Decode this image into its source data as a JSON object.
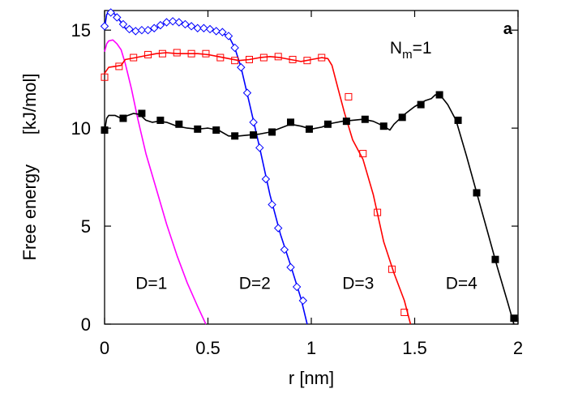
{
  "chart_data": {
    "type": "line",
    "title": "",
    "xlabel": "r [nm]",
    "ylabel": "Free energy      [kJ/mol]",
    "xlim": [
      0,
      2
    ],
    "ylim": [
      0,
      16
    ],
    "xticks": [
      {
        "v": 0,
        "label": "0"
      },
      {
        "v": 0.5,
        "label": "0.5"
      },
      {
        "v": 1,
        "label": "1"
      },
      {
        "v": 1.5,
        "label": "1.5"
      },
      {
        "v": 2,
        "label": "2"
      }
    ],
    "yticks": [
      {
        "v": 0,
        "label": "0"
      },
      {
        "v": 5,
        "label": "5"
      },
      {
        "v": 10,
        "label": "10"
      },
      {
        "v": 15,
        "label": "15"
      }
    ],
    "grid": false,
    "legend": "none",
    "annotations": [
      {
        "text": "a",
        "x": 1.95,
        "y": 14.8,
        "style": "panel"
      },
      {
        "text": "Nₘ=1",
        "x": 1.38,
        "y": 13.8,
        "style": "annot",
        "main": "N",
        "sub": "m",
        "rest": "=1"
      },
      {
        "text": "D=1",
        "x": 0.15,
        "y": 1.8,
        "style": "annot"
      },
      {
        "text": "D=2",
        "x": 0.65,
        "y": 1.8,
        "style": "annot"
      },
      {
        "text": "D=3",
        "x": 1.15,
        "y": 1.8,
        "style": "annot"
      },
      {
        "text": "D=4",
        "x": 1.65,
        "y": 1.8,
        "style": "annot"
      }
    ],
    "series": [
      {
        "color": "#ff00ff",
        "marker": "none",
        "line": [
          [
            0,
            13.9
          ],
          [
            0.01,
            14.3
          ],
          [
            0.02,
            14.45
          ],
          [
            0.04,
            14.5
          ],
          [
            0.06,
            14.3
          ],
          [
            0.08,
            14.0
          ],
          [
            0.1,
            13.3
          ],
          [
            0.13,
            12.0
          ],
          [
            0.16,
            10.5
          ],
          [
            0.2,
            8.7
          ],
          [
            0.25,
            6.9
          ],
          [
            0.3,
            5.1
          ],
          [
            0.35,
            3.5
          ],
          [
            0.4,
            2.1
          ],
          [
            0.45,
            0.9
          ],
          [
            0.49,
            0
          ]
        ],
        "points": []
      },
      {
        "color": "#0000ff",
        "marker": "diamond-open",
        "line": [
          [
            0,
            15.1
          ],
          [
            0.01,
            15.8
          ],
          [
            0.03,
            16.0
          ],
          [
            0.05,
            15.8
          ],
          [
            0.08,
            15.4
          ],
          [
            0.1,
            15.1
          ],
          [
            0.15,
            14.95
          ],
          [
            0.2,
            15.0
          ],
          [
            0.25,
            15.1
          ],
          [
            0.3,
            15.4
          ],
          [
            0.35,
            15.45
          ],
          [
            0.4,
            15.3
          ],
          [
            0.45,
            15.1
          ],
          [
            0.5,
            15.1
          ],
          [
            0.55,
            14.9
          ],
          [
            0.6,
            14.7
          ],
          [
            0.63,
            14.1
          ],
          [
            0.66,
            13.1
          ],
          [
            0.7,
            11.3
          ],
          [
            0.75,
            9.0
          ],
          [
            0.8,
            6.6
          ],
          [
            0.85,
            4.6
          ],
          [
            0.9,
            3.0
          ],
          [
            0.95,
            1.3
          ],
          [
            0.98,
            0
          ]
        ],
        "points": [
          [
            0,
            15.2
          ],
          [
            0.03,
            15.9
          ],
          [
            0.06,
            15.65
          ],
          [
            0.09,
            15.3
          ],
          [
            0.12,
            15.05
          ],
          [
            0.15,
            14.95
          ],
          [
            0.18,
            15.0
          ],
          [
            0.21,
            15.0
          ],
          [
            0.24,
            15.1
          ],
          [
            0.27,
            15.25
          ],
          [
            0.3,
            15.4
          ],
          [
            0.33,
            15.45
          ],
          [
            0.36,
            15.4
          ],
          [
            0.39,
            15.3
          ],
          [
            0.42,
            15.2
          ],
          [
            0.45,
            15.1
          ],
          [
            0.48,
            15.1
          ],
          [
            0.51,
            15.05
          ],
          [
            0.54,
            14.95
          ],
          [
            0.57,
            14.9
          ],
          [
            0.6,
            14.7
          ],
          [
            0.63,
            14.1
          ],
          [
            0.66,
            13.1
          ],
          [
            0.69,
            11.8
          ],
          [
            0.72,
            10.3
          ],
          [
            0.75,
            9.0
          ],
          [
            0.78,
            7.4
          ],
          [
            0.81,
            6.1
          ],
          [
            0.84,
            4.9
          ],
          [
            0.87,
            3.8
          ],
          [
            0.9,
            2.9
          ],
          [
            0.93,
            1.9
          ],
          [
            0.96,
            1.2
          ]
        ]
      },
      {
        "color": "#ff0000",
        "marker": "square-open",
        "line": [
          [
            0,
            12.8
          ],
          [
            0.02,
            13.1
          ],
          [
            0.05,
            13.15
          ],
          [
            0.08,
            13.2
          ],
          [
            0.1,
            13.5
          ],
          [
            0.15,
            13.6
          ],
          [
            0.2,
            13.7
          ],
          [
            0.25,
            13.8
          ],
          [
            0.3,
            13.85
          ],
          [
            0.35,
            13.8
          ],
          [
            0.4,
            13.8
          ],
          [
            0.45,
            13.8
          ],
          [
            0.5,
            13.75
          ],
          [
            0.55,
            13.65
          ],
          [
            0.6,
            13.55
          ],
          [
            0.65,
            13.45
          ],
          [
            0.7,
            13.5
          ],
          [
            0.75,
            13.6
          ],
          [
            0.8,
            13.65
          ],
          [
            0.85,
            13.6
          ],
          [
            0.9,
            13.5
          ],
          [
            0.95,
            13.4
          ],
          [
            1.0,
            13.5
          ],
          [
            1.05,
            13.6
          ],
          [
            1.08,
            13.55
          ],
          [
            1.1,
            13.2
          ],
          [
            1.13,
            12.0
          ],
          [
            1.16,
            10.8
          ],
          [
            1.2,
            9.4
          ],
          [
            1.25,
            8.4
          ],
          [
            1.3,
            6.6
          ],
          [
            1.35,
            4.2
          ],
          [
            1.4,
            2.6
          ],
          [
            1.45,
            1.2
          ],
          [
            1.48,
            0
          ]
        ],
        "points": [
          [
            0,
            12.6
          ],
          [
            0.07,
            13.15
          ],
          [
            0.14,
            13.6
          ],
          [
            0.21,
            13.75
          ],
          [
            0.28,
            13.8
          ],
          [
            0.35,
            13.85
          ],
          [
            0.42,
            13.8
          ],
          [
            0.49,
            13.8
          ],
          [
            0.56,
            13.6
          ],
          [
            0.63,
            13.45
          ],
          [
            0.7,
            13.5
          ],
          [
            0.77,
            13.6
          ],
          [
            0.84,
            13.65
          ],
          [
            0.91,
            13.5
          ],
          [
            0.98,
            13.45
          ],
          [
            1.05,
            13.6
          ],
          [
            1.18,
            11.6
          ],
          [
            1.25,
            8.7
          ],
          [
            1.32,
            5.7
          ],
          [
            1.39,
            2.8
          ],
          [
            1.45,
            0.6
          ]
        ]
      },
      {
        "color": "#000000",
        "marker": "square-filled",
        "line": [
          [
            0,
            9.85
          ],
          [
            0.01,
            10.5
          ],
          [
            0.02,
            10.65
          ],
          [
            0.05,
            10.65
          ],
          [
            0.08,
            10.5
          ],
          [
            0.1,
            10.6
          ],
          [
            0.14,
            10.75
          ],
          [
            0.17,
            10.7
          ],
          [
            0.2,
            10.4
          ],
          [
            0.23,
            10.3
          ],
          [
            0.26,
            10.35
          ],
          [
            0.3,
            10.3
          ],
          [
            0.35,
            10.1
          ],
          [
            0.4,
            10.0
          ],
          [
            0.45,
            9.95
          ],
          [
            0.5,
            10.0
          ],
          [
            0.55,
            9.9
          ],
          [
            0.6,
            9.6
          ],
          [
            0.65,
            9.6
          ],
          [
            0.7,
            9.65
          ],
          [
            0.75,
            9.7
          ],
          [
            0.8,
            9.8
          ],
          [
            0.85,
            10.0
          ],
          [
            0.9,
            10.2
          ],
          [
            0.95,
            10.1
          ],
          [
            1.0,
            9.95
          ],
          [
            1.05,
            10.05
          ],
          [
            1.1,
            10.25
          ],
          [
            1.15,
            10.35
          ],
          [
            1.2,
            10.4
          ],
          [
            1.25,
            10.45
          ],
          [
            1.3,
            10.35
          ],
          [
            1.35,
            10.1
          ],
          [
            1.38,
            9.9
          ],
          [
            1.4,
            10.2
          ],
          [
            1.45,
            10.7
          ],
          [
            1.5,
            11.1
          ],
          [
            1.55,
            11.4
          ],
          [
            1.58,
            11.5
          ],
          [
            1.6,
            11.7
          ],
          [
            1.63,
            11.6
          ],
          [
            1.66,
            11.2
          ],
          [
            1.7,
            10.4
          ],
          [
            1.75,
            8.6
          ],
          [
            1.8,
            6.7
          ],
          [
            1.85,
            4.8
          ],
          [
            1.9,
            2.9
          ],
          [
            1.95,
            1.1
          ],
          [
            1.98,
            0
          ]
        ],
        "points": [
          [
            0,
            9.9
          ],
          [
            0.09,
            10.5
          ],
          [
            0.18,
            10.75
          ],
          [
            0.27,
            10.4
          ],
          [
            0.36,
            10.2
          ],
          [
            0.45,
            9.95
          ],
          [
            0.54,
            9.9
          ],
          [
            0.63,
            9.6
          ],
          [
            0.72,
            9.65
          ],
          [
            0.81,
            9.8
          ],
          [
            0.9,
            10.3
          ],
          [
            0.99,
            9.95
          ],
          [
            1.08,
            10.2
          ],
          [
            1.17,
            10.35
          ],
          [
            1.26,
            10.45
          ],
          [
            1.35,
            10.1
          ],
          [
            1.44,
            10.55
          ],
          [
            1.53,
            11.2
          ],
          [
            1.62,
            11.7
          ],
          [
            1.71,
            10.4
          ],
          [
            1.8,
            6.7
          ],
          [
            1.89,
            3.3
          ],
          [
            1.98,
            0.3
          ]
        ]
      }
    ]
  }
}
